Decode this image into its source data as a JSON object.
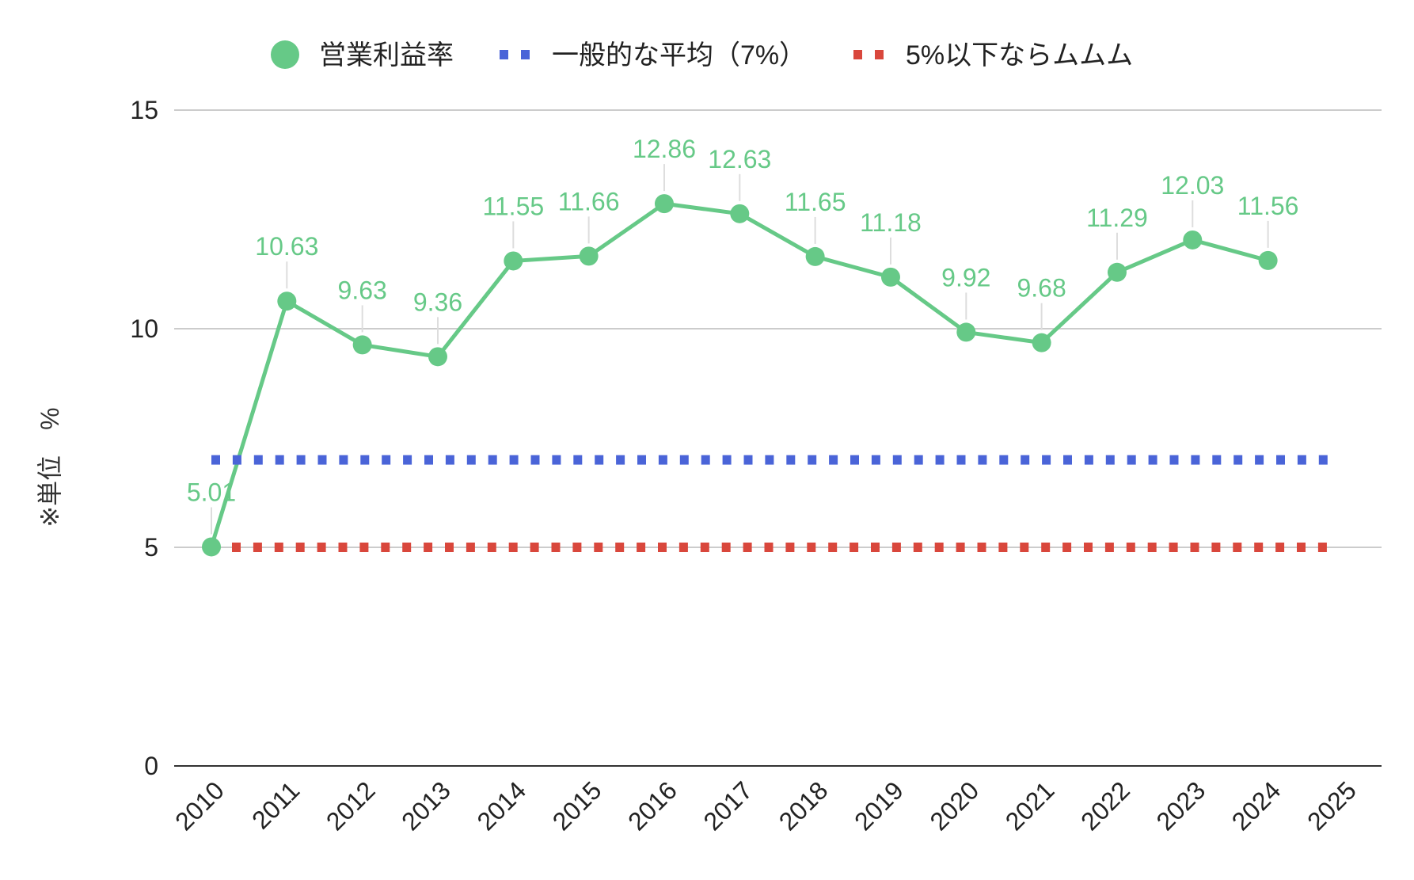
{
  "chart_data": {
    "type": "line",
    "title": "",
    "ylabel": "※単位　%",
    "xlabel": "",
    "ylim": [
      0,
      15
    ],
    "yticks": [
      0,
      5,
      10,
      15
    ],
    "grid": true,
    "legend_position": "top",
    "categories": [
      "2010",
      "2011",
      "2012",
      "2013",
      "2014",
      "2015",
      "2016",
      "2017",
      "2018",
      "2019",
      "2020",
      "2021",
      "2022",
      "2023",
      "2024",
      "2025"
    ],
    "series": [
      {
        "name": "営業利益率",
        "style": "solid-with-markers",
        "color": "#66c987",
        "values": [
          5.01,
          10.63,
          9.63,
          9.36,
          11.55,
          11.66,
          12.86,
          12.63,
          11.65,
          11.18,
          9.92,
          9.68,
          11.29,
          12.03,
          11.56,
          null
        ],
        "labels": [
          "5.01",
          "10.63",
          "9.63",
          "9.36",
          "11.55",
          "11.66",
          "12.86",
          "12.63",
          "11.65",
          "11.18",
          "9.92",
          "9.68",
          "11.29",
          "12.03",
          "11.56",
          ""
        ]
      },
      {
        "name": "一般的な平均（7%）",
        "style": "dotted",
        "color": "#4a64d8",
        "values": [
          7,
          7,
          7,
          7,
          7,
          7,
          7,
          7,
          7,
          7,
          7,
          7,
          7,
          7,
          7,
          7
        ]
      },
      {
        "name": "5%以下ならムムム",
        "style": "dotted",
        "color": "#d9473c",
        "values": [
          5,
          5,
          5,
          5,
          5,
          5,
          5,
          5,
          5,
          5,
          5,
          5,
          5,
          5,
          5,
          5
        ]
      }
    ]
  }
}
